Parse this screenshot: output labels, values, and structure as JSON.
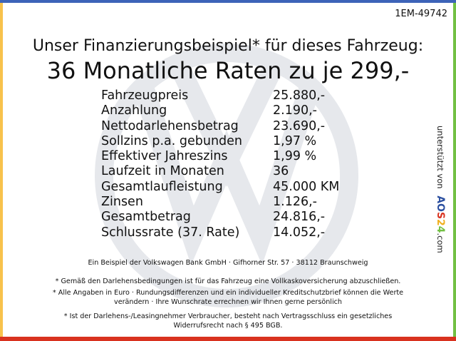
{
  "reference": "1EM-49742",
  "headline": "Unser Finanzierungsbeispiel* für dieses Fahrzeug:",
  "subheadline": "36 Monatliche Raten zu je 299,-",
  "rows": [
    {
      "label": "Fahrzeugpreis",
      "value": "25.880,-"
    },
    {
      "label": "Anzahlung",
      "value": "2.190,-"
    },
    {
      "label": "Nettodarlehensbetrag",
      "value": "23.690,-"
    },
    {
      "label": "Sollzins p.a. gebunden",
      "value": "1,97 %"
    },
    {
      "label": "Effektiver Jahreszins",
      "value": "1,99 %"
    },
    {
      "label": "Laufzeit in Monaten",
      "value": "36"
    },
    {
      "label": "Gesamtlaufleistung",
      "value": "45.000 KM"
    },
    {
      "label": "Zinsen",
      "value": "1.126,-"
    },
    {
      "label": "Gesamtbetrag",
      "value": "24.816,-"
    },
    {
      "label": "Schlussrate (37. Rate)",
      "value": "14.052,-"
    }
  ],
  "sponsor": {
    "prefix": "unterstützt von",
    "brand_a": "A",
    "brand_o": "O",
    "brand_s": "S",
    "brand_2": "2",
    "brand_4": "4",
    "suffix": ".com"
  },
  "footer": {
    "bank": "Ein Beispiel der Volkswagen Bank GmbH · Gifhorner Str. 57 · 38112 Braunschweig",
    "note1": "* Gemäß den Darlehensbedingungen ist für das Fahrzeug eine Vollkaskoversicherung abzuschließen.",
    "note2a": "* Alle Angaben in Euro · Rundungsdifferenzen und ein individueller Kreditschutzbrief können die Werte",
    "note2b": "verändern · Ihre Wunschrate errechnen wir Ihnen gerne persönlich",
    "note3a": "* Ist der Darlehens-/Leasingnehmer Verbraucher, besteht nach Vertragsschluss ein gesetzliches",
    "note3b": "Widerrufsrecht nach § 495 BGB."
  },
  "colors": {
    "top": "#3d63b8",
    "left": "#f8c24c",
    "right": "#72c043",
    "bottom": "#d9321f",
    "watermark": "#e6e8ec"
  }
}
